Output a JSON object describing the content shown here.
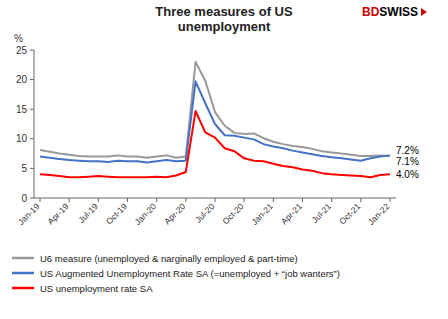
{
  "chart_data": {
    "type": "line",
    "title": "Three measures of US\nunemployment",
    "ylabel": "%",
    "annotations": [
      "BDSWISS"
    ],
    "categories": [
      "Jan-19",
      null,
      null,
      "Apr-19",
      null,
      null,
      "Jul-19",
      null,
      null,
      "Oct-19",
      null,
      null,
      "Jan-20",
      null,
      null,
      "Apr-20",
      null,
      null,
      "Jul-20",
      null,
      null,
      "Oct-20",
      null,
      null,
      "Jan-21",
      null,
      null,
      "Apr-21",
      null,
      null,
      "Jul-21",
      null,
      null,
      "Oct-21",
      null,
      null,
      "Jan-22"
    ],
    "ylim": [
      0,
      25
    ],
    "yticks": [
      0,
      5,
      10,
      15,
      20,
      25
    ],
    "grid": false,
    "legend": "bottom",
    "series": [
      {
        "name": "U6 measure (unemployed & narginally employed & part-time)",
        "color": "#999999",
        "values": [
          8.1,
          7.8,
          7.5,
          7.3,
          7.1,
          7.0,
          7.0,
          7.0,
          7.2,
          7.0,
          7.0,
          6.8,
          7.0,
          7.2,
          6.8,
          7.0,
          23.0,
          19.8,
          14.5,
          12.2,
          11.0,
          10.8,
          10.9,
          10.1,
          9.5,
          9.1,
          8.8,
          8.6,
          8.3,
          7.9,
          7.7,
          7.5,
          7.3,
          7.1,
          7.1,
          7.2,
          7.1
        ],
        "value_labels": [
          null,
          null,
          null,
          null,
          null,
          null,
          null,
          null,
          null,
          null,
          null,
          null,
          null,
          null,
          null,
          null,
          null,
          null,
          null,
          null,
          null,
          null,
          null,
          null,
          null,
          null,
          null,
          null,
          null,
          null,
          null,
          null,
          null,
          null,
          null,
          null,
          "7.1%"
        ]
      },
      {
        "name": "US Augmented Unemployment Rate SA (=unemployed + “job wanters”)",
        "color": "#4472C4",
        "values": [
          7.0,
          6.8,
          6.6,
          6.4,
          6.3,
          6.2,
          6.2,
          6.1,
          6.3,
          6.2,
          6.2,
          6.0,
          6.2,
          6.4,
          6.2,
          6.3,
          19.7,
          16.0,
          12.5,
          10.6,
          10.5,
          10.2,
          9.9,
          9.1,
          8.7,
          8.4,
          8.0,
          7.7,
          7.4,
          7.1,
          6.9,
          6.7,
          6.5,
          6.3,
          6.7,
          7.0,
          7.2
        ],
        "value_labels": [
          null,
          null,
          null,
          null,
          null,
          null,
          null,
          null,
          null,
          null,
          null,
          null,
          null,
          null,
          null,
          null,
          null,
          null,
          null,
          null,
          null,
          null,
          null,
          null,
          null,
          null,
          null,
          null,
          null,
          null,
          null,
          null,
          null,
          null,
          null,
          null,
          "7.2%"
        ]
      },
      {
        "name": "US unemployment rate SA",
        "color": "#FF0000",
        "values": [
          4.0,
          3.9,
          3.7,
          3.5,
          3.5,
          3.6,
          3.7,
          3.6,
          3.5,
          3.5,
          3.5,
          3.5,
          3.6,
          3.5,
          3.8,
          4.4,
          14.7,
          11.1,
          10.2,
          8.4,
          7.9,
          6.7,
          6.3,
          6.2,
          5.8,
          5.4,
          5.2,
          4.8,
          4.6,
          4.2,
          4.0,
          3.9,
          3.8,
          3.7,
          3.5,
          3.9,
          4.0
        ],
        "value_labels": [
          null,
          null,
          null,
          null,
          null,
          null,
          null,
          null,
          null,
          null,
          null,
          null,
          null,
          null,
          null,
          null,
          null,
          null,
          null,
          null,
          null,
          null,
          null,
          null,
          null,
          null,
          null,
          null,
          null,
          null,
          null,
          null,
          null,
          null,
          null,
          null,
          "4.0%"
        ]
      }
    ]
  }
}
